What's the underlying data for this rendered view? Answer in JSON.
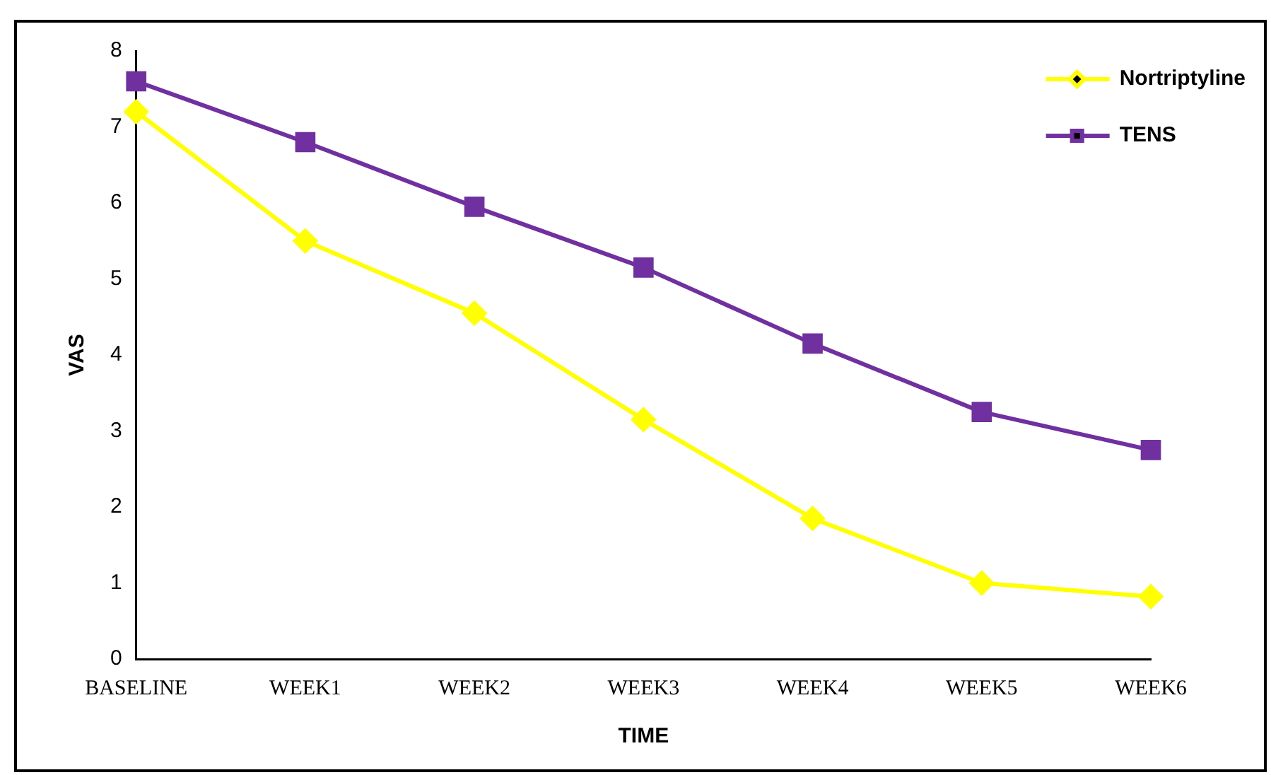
{
  "chart_data": {
    "type": "line",
    "xlabel": "TIME",
    "ylabel": "VAS",
    "categories": [
      "BASELINE",
      "WEEK1",
      "WEEK2",
      "WEEK3",
      "WEEK4",
      "WEEK5",
      "WEEK6"
    ],
    "series": [
      {
        "name": "Nortriptyline",
        "color": "#ffff00",
        "marker": "diamond",
        "values": [
          7.2,
          5.5,
          4.55,
          3.15,
          1.85,
          1.0,
          0.82
        ]
      },
      {
        "name": "TENS",
        "color": "#7030a0",
        "marker": "square",
        "values": [
          7.6,
          6.8,
          5.95,
          5.15,
          4.15,
          3.25,
          2.75
        ]
      }
    ],
    "ylim": [
      0,
      8
    ],
    "yticks": [
      0,
      1,
      2,
      3,
      4,
      5,
      6,
      7,
      8
    ],
    "grid": false,
    "legend": "top right",
    "line_style": "solid"
  }
}
